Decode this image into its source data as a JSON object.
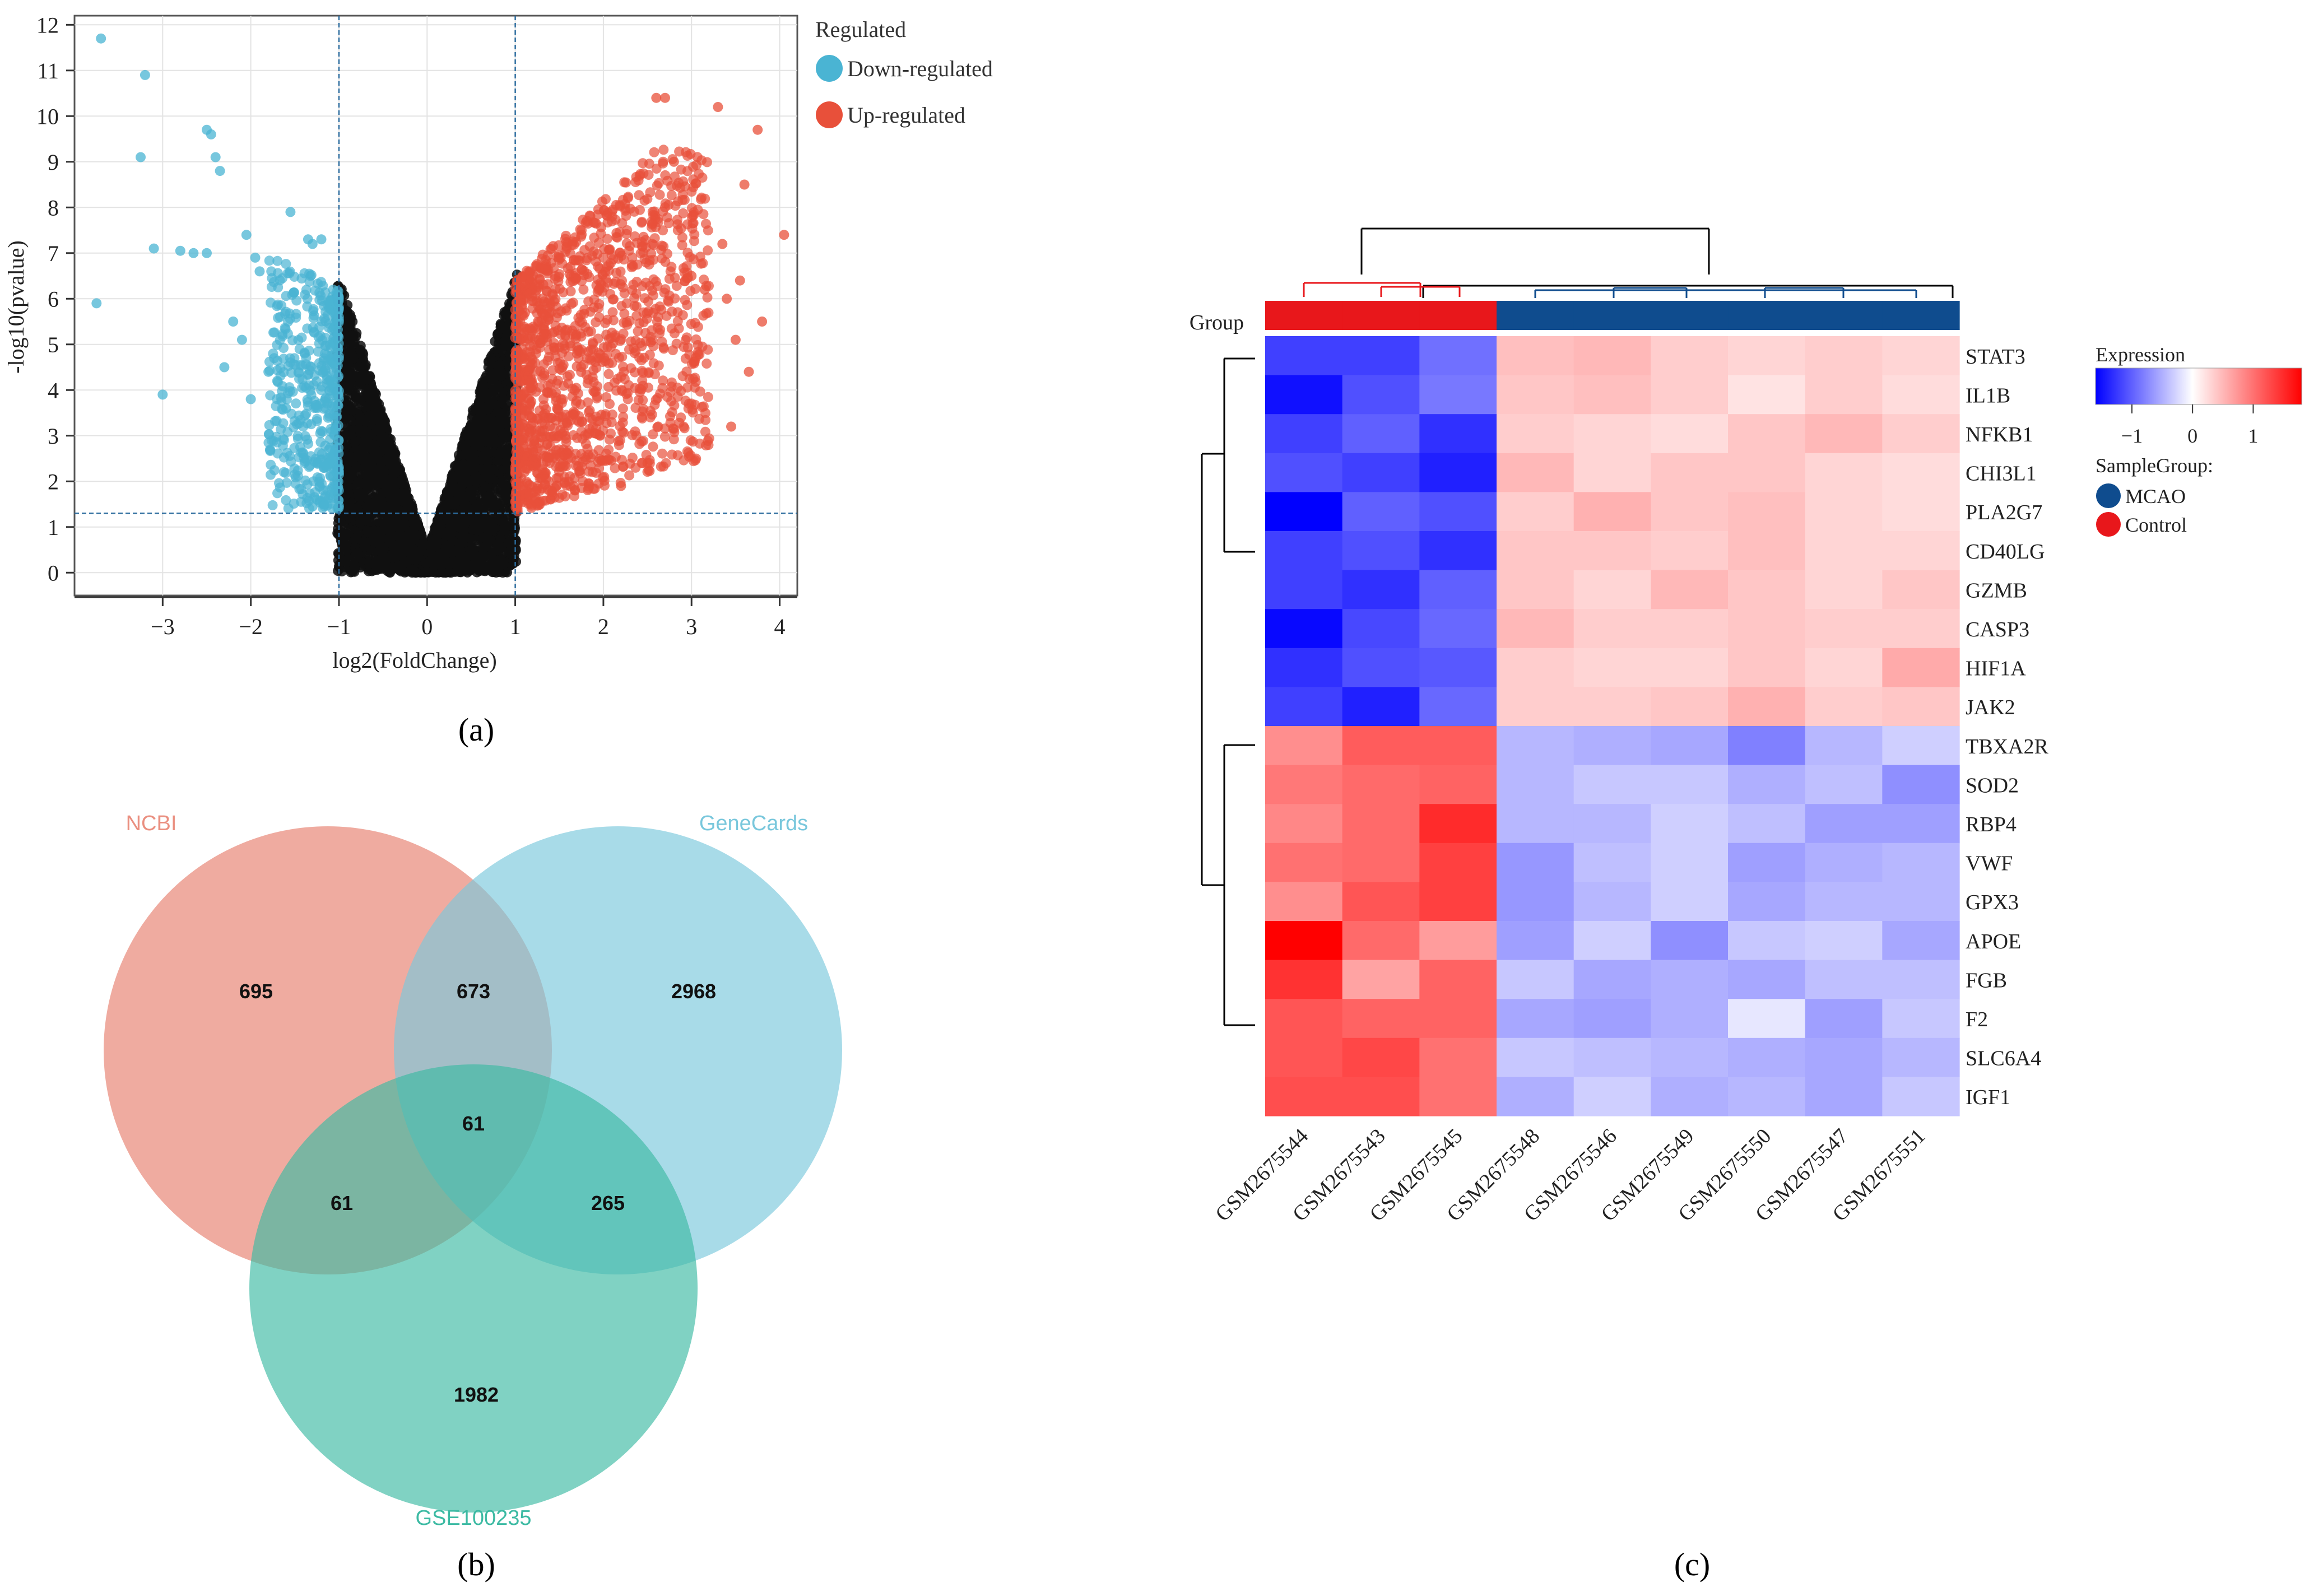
{
  "chart_data": [
    {
      "type": "scatter",
      "panel_label": "(a)",
      "title": "",
      "xlabel": "log2(FoldChange)",
      "ylabel": "-log10(pvalue)",
      "xlim": [
        -4.0,
        4.2
      ],
      "ylim": [
        -0.5,
        12.2
      ],
      "xticks": [
        -3,
        -2,
        -1,
        0,
        1,
        2,
        3,
        4
      ],
      "yticks": [
        0,
        1,
        2,
        3,
        4,
        5,
        6,
        7,
        8,
        9,
        10,
        11,
        12
      ],
      "grid": true,
      "fc_thresholds": [
        -1,
        1
      ],
      "p_threshold": 1.3,
      "legend": {
        "title": "Regulated",
        "position": "top-right",
        "entries": [
          {
            "label": "Down-regulated",
            "color": "#4ab4d3"
          },
          {
            "label": "Up-regulated",
            "color": "#e8503a"
          }
        ]
      },
      "series": [
        {
          "name": "Down-regulated",
          "color": "#4ab4d3",
          "points": [
            [
              -3.7,
              11.7
            ],
            [
              -3.2,
              10.9
            ],
            [
              -3.25,
              9.1
            ],
            [
              -2.5,
              9.7
            ],
            [
              -2.45,
              9.6
            ],
            [
              -2.4,
              9.1
            ],
            [
              -2.35,
              8.8
            ],
            [
              -3.1,
              7.1
            ],
            [
              -2.8,
              7.05
            ],
            [
              -2.65,
              7.0
            ],
            [
              -2.5,
              7.0
            ],
            [
              -3.75,
              5.9
            ],
            [
              -3.0,
              3.9
            ],
            [
              -2.05,
              7.4
            ],
            [
              -1.95,
              6.9
            ],
            [
              -1.9,
              6.6
            ],
            [
              -1.55,
              7.9
            ],
            [
              -1.35,
              7.3
            ],
            [
              -1.3,
              7.2
            ],
            [
              -1.2,
              7.3
            ],
            [
              -2.2,
              5.5
            ],
            [
              -2.1,
              5.1
            ],
            [
              -2.3,
              4.5
            ],
            [
              -1.8,
              4.4
            ],
            [
              -2.0,
              3.8
            ],
            [
              -1.7,
              4.2
            ],
            [
              -1.6,
              3.6
            ],
            [
              -1.25,
              1.6
            ],
            [
              -1.3,
              1.45
            ]
          ],
          "cluster": {
            "x_range": [
              -1.8,
              -1.0
            ],
            "y_range": [
              1.4,
              6.9
            ],
            "count": 500
          }
        },
        {
          "name": "Up-regulated",
          "color": "#e8503a",
          "points": [
            [
              2.6,
              10.4
            ],
            [
              2.7,
              10.4
            ],
            [
              3.3,
              10.2
            ],
            [
              3.75,
              9.7
            ],
            [
              2.8,
              9.0
            ],
            [
              3.6,
              8.5
            ],
            [
              4.05,
              7.4
            ],
            [
              3.35,
              7.2
            ],
            [
              3.55,
              6.4
            ],
            [
              3.4,
              6.0
            ],
            [
              3.8,
              5.5
            ],
            [
              3.5,
              5.1
            ],
            [
              3.65,
              4.4
            ],
            [
              3.45,
              3.2
            ],
            [
              2.5,
              2.4
            ],
            [
              2.2,
              1.9
            ],
            [
              3.0,
              6.5
            ],
            [
              3.15,
              6.2
            ]
          ],
          "cluster": {
            "x_range": [
              1.0,
              3.2
            ],
            "y_range": [
              1.3,
              9.3
            ],
            "count": 1400
          }
        },
        {
          "name": "Not significant",
          "color": "#111111",
          "cluster": {
            "type": "v-shape",
            "count": 4000
          }
        }
      ]
    },
    {
      "type": "venn",
      "panel_label": "(b)",
      "sets": [
        {
          "name": "NCBI",
          "color": "#ea8f80"
        },
        {
          "name": "GeneCards",
          "color": "#79c7dc"
        },
        {
          "name": "GSE100235",
          "color": "#3cbaa3"
        }
      ],
      "regions": {
        "NCBI_only": 695,
        "GeneCards_only": 2968,
        "GSE100235_only": 1982,
        "NCBI_GeneCards": 673,
        "NCBI_GSE100235": 61,
        "GeneCards_GSE100235": 265,
        "all_three": 61
      }
    },
    {
      "type": "heatmap",
      "panel_label": "(c)",
      "group_label": "Group",
      "samples": [
        "GSM2675544",
        "GSM2675543",
        "GSM2675545",
        "GSM2675548",
        "GSM2675546",
        "GSM2675549",
        "GSM2675550",
        "GSM2675547",
        "GSM2675551"
      ],
      "sample_groups": [
        "Control",
        "Control",
        "Control",
        "MCAO",
        "MCAO",
        "MCAO",
        "MCAO",
        "MCAO",
        "MCAO"
      ],
      "genes": [
        "STAT3",
        "IL1B",
        "NFKB1",
        "CHI3L1",
        "PLA2G7",
        "CD40LG",
        "GZMB",
        "CASP3",
        "HIF1A",
        "JAK2",
        "TBXA2R",
        "SOD2",
        "RBP4",
        "VWF",
        "GPX3",
        "APOE",
        "FGB",
        "F2",
        "SLC6A4",
        "IGF1"
      ],
      "values": [
        [
          -1.2,
          -1.2,
          -0.9,
          0.45,
          0.5,
          0.35,
          0.3,
          0.35,
          0.3
        ],
        [
          -1.5,
          -1.1,
          -0.85,
          0.4,
          0.45,
          0.35,
          0.2,
          0.35,
          0.25
        ],
        [
          -1.2,
          -1.0,
          -1.3,
          0.35,
          0.3,
          0.25,
          0.4,
          0.5,
          0.35
        ],
        [
          -1.1,
          -1.2,
          -1.4,
          0.5,
          0.3,
          0.4,
          0.4,
          0.3,
          0.25
        ],
        [
          -1.6,
          -1.0,
          -1.1,
          0.35,
          0.55,
          0.4,
          0.45,
          0.3,
          0.25
        ],
        [
          -1.2,
          -1.1,
          -1.3,
          0.4,
          0.4,
          0.35,
          0.45,
          0.3,
          0.3
        ],
        [
          -1.2,
          -1.3,
          -1.0,
          0.4,
          0.3,
          0.5,
          0.4,
          0.3,
          0.4
        ],
        [
          -1.55,
          -1.15,
          -0.95,
          0.5,
          0.35,
          0.35,
          0.4,
          0.35,
          0.35
        ],
        [
          -1.3,
          -1.1,
          -1.05,
          0.35,
          0.3,
          0.3,
          0.4,
          0.3,
          0.6
        ],
        [
          -1.2,
          -1.4,
          -0.95,
          0.35,
          0.35,
          0.4,
          0.55,
          0.35,
          0.4
        ],
        [
          0.8,
          1.15,
          1.15,
          -0.45,
          -0.5,
          -0.55,
          -0.8,
          -0.45,
          -0.3
        ],
        [
          0.95,
          1.05,
          1.1,
          -0.45,
          -0.35,
          -0.35,
          -0.5,
          -0.4,
          -0.7
        ],
        [
          0.85,
          1.05,
          1.5,
          -0.45,
          -0.45,
          -0.3,
          -0.4,
          -0.6,
          -0.6
        ],
        [
          1.0,
          1.05,
          1.35,
          -0.65,
          -0.4,
          -0.3,
          -0.6,
          -0.5,
          -0.45
        ],
        [
          0.8,
          1.2,
          1.35,
          -0.65,
          -0.45,
          -0.3,
          -0.55,
          -0.45,
          -0.45
        ],
        [
          1.8,
          1.05,
          0.7,
          -0.6,
          -0.3,
          -0.7,
          -0.35,
          -0.3,
          -0.55
        ],
        [
          1.45,
          0.65,
          1.1,
          -0.35,
          -0.55,
          -0.5,
          -0.55,
          -0.4,
          -0.4
        ],
        [
          1.2,
          1.1,
          1.1,
          -0.55,
          -0.6,
          -0.5,
          -0.15,
          -0.6,
          -0.35
        ],
        [
          1.2,
          1.3,
          1.0,
          -0.35,
          -0.4,
          -0.45,
          -0.5,
          -0.55,
          -0.45
        ],
        [
          1.25,
          1.25,
          1.0,
          -0.5,
          -0.3,
          -0.5,
          -0.45,
          -0.55,
          -0.35
        ]
      ],
      "color_scale": {
        "low": "#0000ff",
        "mid": "#ffffff",
        "high": "#ff0000",
        "range": [
          -1.6,
          1.8
        ],
        "ticks": [
          -1,
          0,
          1
        ]
      },
      "legend": {
        "expression_title": "Expression",
        "group_title": "SampleGroup:",
        "groups": [
          {
            "name": "MCAO",
            "color": "#0f4c8e"
          },
          {
            "name": "Control",
            "color": "#e8171b"
          }
        ]
      }
    }
  ]
}
